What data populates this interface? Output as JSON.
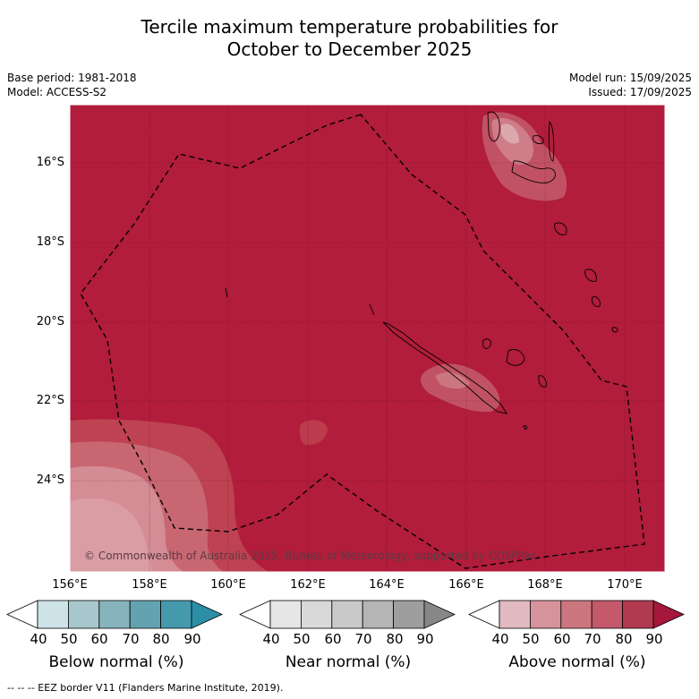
{
  "title_line1": "Tercile maximum temperature probabilities for",
  "title_line2": "October to December 2025",
  "meta_left": {
    "base_period": "Base period: 1981-2018",
    "model": "Model: ACCESS-S2"
  },
  "meta_right": {
    "model_run": "Model run: 15/09/2025",
    "issued": "Issued: 17/09/2025"
  },
  "map": {
    "lat_labels": [
      "16°S",
      "18°S",
      "20°S",
      "22°S",
      "24°S"
    ],
    "lon_labels": [
      "156°E",
      "158°E",
      "160°E",
      "162°E",
      "164°E",
      "166°E",
      "168°E",
      "170°E"
    ],
    "copyright": "© Commonwealth of Australia 2025, Bureau of Meteorology, supported by COSPPac",
    "colors": {
      "above_80_90": "#b11d3b",
      "ocean_land_outline": "#000000"
    }
  },
  "colorbars": {
    "below": {
      "title": "Below normal (%)",
      "ticks": [
        "40",
        "50",
        "60",
        "70",
        "80",
        "90"
      ],
      "colors": [
        "#ffffff",
        "#cde3e8",
        "#a7c7cd",
        "#87b3bd",
        "#63a3b1",
        "#4499ad",
        "#2d8fa6"
      ]
    },
    "near": {
      "title": "Near normal (%)",
      "ticks": [
        "40",
        "50",
        "60",
        "70",
        "80",
        "90"
      ],
      "colors": [
        "#ffffff",
        "#e6e6e6",
        "#d9d9d9",
        "#c9c9c9",
        "#b5b5b5",
        "#9e9e9e",
        "#878787"
      ]
    },
    "above": {
      "title": "Above normal (%)",
      "ticks": [
        "40",
        "50",
        "60",
        "70",
        "80",
        "90"
      ],
      "colors": [
        "#ffffff",
        "#e0b9c1",
        "#d7939c",
        "#cc7780",
        "#c3596a",
        "#b13a51",
        "#a5173b"
      ]
    }
  },
  "footer": "--  --  -- EEZ border V11 (Flanders Marine Institute, 2019)."
}
